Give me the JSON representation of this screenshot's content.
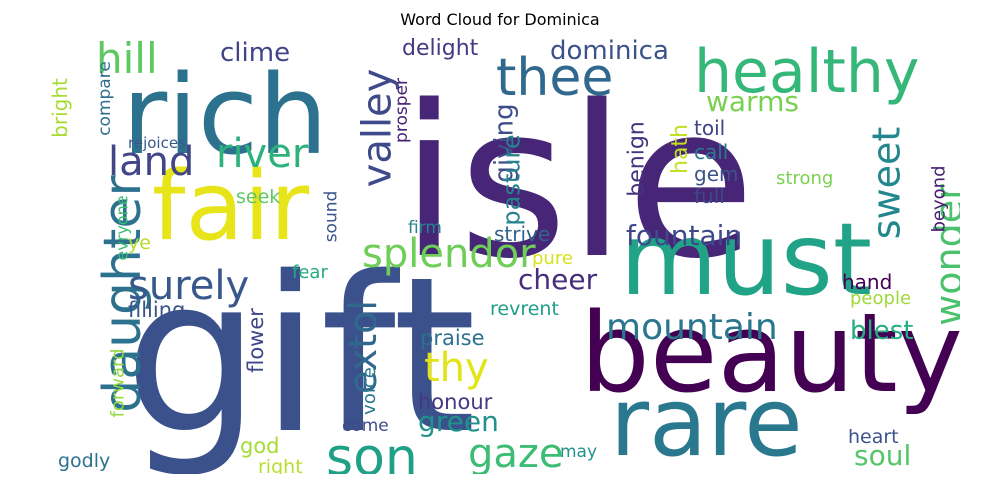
{
  "title": "Word Cloud for Dominica",
  "words": [
    {
      "text": "isle",
      "color": "#482677"
    },
    {
      "text": "gift",
      "color": "#3b518b"
    },
    {
      "text": "rich",
      "color": "#2c728e"
    },
    {
      "text": "must",
      "color": "#20a386"
    },
    {
      "text": "fair",
      "color": "#e7e419"
    },
    {
      "text": "beauty",
      "color": "#440154"
    },
    {
      "text": "rare",
      "color": "#2a788e"
    },
    {
      "text": "healthy",
      "color": "#35b779"
    },
    {
      "text": "thee",
      "color": "#31688e"
    },
    {
      "text": "daughter",
      "color": "#2c728e"
    },
    {
      "text": "son",
      "color": "#1fa187"
    },
    {
      "text": "hill",
      "color": "#5ec962"
    },
    {
      "text": "land",
      "color": "#404688"
    },
    {
      "text": "river",
      "color": "#2db27d"
    },
    {
      "text": "valley",
      "color": "#3e4a89"
    },
    {
      "text": "surely",
      "color": "#38588c"
    },
    {
      "text": "splendor",
      "color": "#6ece58"
    },
    {
      "text": "sweet",
      "color": "#23888e"
    },
    {
      "text": "wonder",
      "color": "#4ac16d"
    },
    {
      "text": "extol",
      "color": "#31688e"
    },
    {
      "text": "mountain",
      "color": "#2a768e"
    },
    {
      "text": "gaze",
      "color": "#3dbc74"
    },
    {
      "text": "thy",
      "color": "#e2e418"
    },
    {
      "text": "fountain",
      "color": "#3e4989"
    },
    {
      "text": "cheer",
      "color": "#472d7b"
    },
    {
      "text": "warms",
      "color": "#7ad151"
    },
    {
      "text": "dominica",
      "color": "#3b528b"
    },
    {
      "text": "clime",
      "color": "#414487"
    },
    {
      "text": "delight",
      "color": "#443983"
    },
    {
      "text": "giving",
      "color": "#3d4d8a"
    },
    {
      "text": "pasture",
      "color": "#26828e"
    },
    {
      "text": "benign",
      "color": "#46337e"
    },
    {
      "text": "hath",
      "color": "#c2df23"
    },
    {
      "text": "toil",
      "color": "#404387"
    },
    {
      "text": "call",
      "color": "#2a788e"
    },
    {
      "text": "gem",
      "color": "#3b528b"
    },
    {
      "text": "full",
      "color": "#3f4788"
    },
    {
      "text": "strong",
      "color": "#7ad151"
    },
    {
      "text": "beyond",
      "color": "#481f70"
    },
    {
      "text": "bright",
      "color": "#a8db34"
    },
    {
      "text": "compare",
      "color": "#2e6e8e"
    },
    {
      "text": "rejoices",
      "color": "#38598c"
    },
    {
      "text": "prosper",
      "color": "#482173"
    },
    {
      "text": "seek",
      "color": "#5ec962"
    },
    {
      "text": "sound",
      "color": "#3a548c"
    },
    {
      "text": "firm",
      "color": "#25838e"
    },
    {
      "text": "strive",
      "color": "#33638d"
    },
    {
      "text": "evryone",
      "color": "#3dbc74"
    },
    {
      "text": "ye",
      "color": "#b5de2b"
    },
    {
      "text": "fear",
      "color": "#25ab82"
    },
    {
      "text": "pure",
      "color": "#d8e219"
    },
    {
      "text": "flower",
      "color": "#404688"
    },
    {
      "text": "filling",
      "color": "#3b528b"
    },
    {
      "text": "praise",
      "color": "#2d718e"
    },
    {
      "text": "revrent",
      "color": "#1f9e89"
    },
    {
      "text": "hand",
      "color": "#440154"
    },
    {
      "text": "people",
      "color": "#a0da39"
    },
    {
      "text": "blest",
      "color": "#26ad81"
    },
    {
      "text": "voice",
      "color": "#2a788e"
    },
    {
      "text": "honour",
      "color": "#453781"
    },
    {
      "text": "green",
      "color": "#21918c"
    },
    {
      "text": "forward",
      "color": "#95d840"
    },
    {
      "text": "god",
      "color": "#a5db36"
    },
    {
      "text": "come",
      "color": "#3e4a89"
    },
    {
      "text": "may",
      "color": "#21918c"
    },
    {
      "text": "godly",
      "color": "#2c728e"
    },
    {
      "text": "right",
      "color": "#b8de29"
    },
    {
      "text": "heart",
      "color": "#3b528b"
    },
    {
      "text": "soul",
      "color": "#54c568"
    }
  ]
}
